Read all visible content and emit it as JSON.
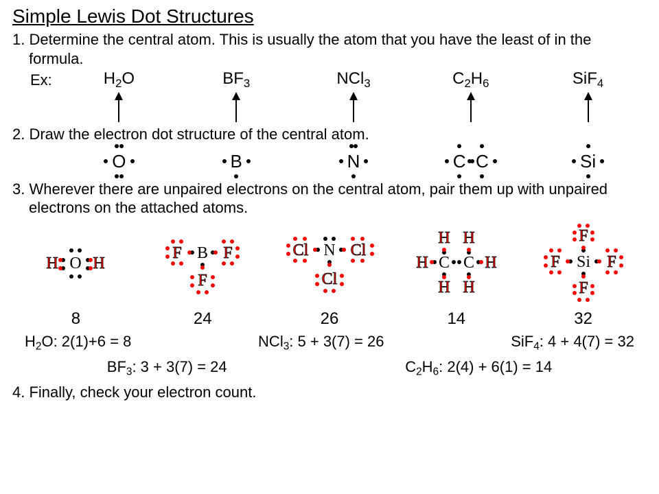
{
  "title": "Simple Lewis Dot Structures",
  "steps": {
    "s1": "1. Determine the central atom.  This is usually the atom that you have the least of in the formula.",
    "s2": "2. Draw the electron dot structure of the central atom.",
    "s3": "3. Wherever there are unpaired electrons on the central atom, pair them up with unpaired electrons on the attached atoms.",
    "s4": "4. Finally, check your electron count."
  },
  "ex_label": "Ex:",
  "formulas": {
    "f1_html": "H<sub>2</sub>O",
    "f2_html": "BF<sub>3</sub>",
    "f3_html": "NCl<sub>3</sub>",
    "f4_html": "C<sub>2</sub>H<sub>6</sub>",
    "f5_html": "SiF<sub>4</sub>"
  },
  "central_atoms": {
    "a1": "O",
    "a2": "B",
    "a3": "N",
    "a4": "C C",
    "a5": "Si"
  },
  "counts": {
    "c1": "8",
    "c2": "24",
    "c3": "26",
    "c4": "14",
    "c5": "32"
  },
  "checks": {
    "k1_html": "H<sub>2</sub>O: 2(1)+6 = 8",
    "k2_html": "NCl<sub>3</sub>: 5 + 3(7) = 26",
    "k3_html": "SiF<sub>4</sub>: 4 + 4(7) = 32",
    "k4_html": "BF<sub>3</sub>: 3 + 3(7) = 24",
    "k5_html": "C<sub>2</sub>H<sub>6</sub>: 2(4) + 6(1) = 14"
  },
  "colors": {
    "bg": "#ffffff",
    "text": "#000000",
    "attached_fill": "#ff0000",
    "attached_stroke": "#000000",
    "dot_red": "#ff0000",
    "dot_black": "#000000"
  },
  "diagrams": {
    "h2o": {
      "center": "O",
      "attached": [
        "H",
        "H"
      ],
      "total_electrons": 8
    },
    "bf3": {
      "center": "B",
      "attached": [
        "F",
        "F",
        "F"
      ],
      "total_electrons": 24
    },
    "ncl3": {
      "center": "N",
      "attached": [
        "Cl",
        "Cl",
        "Cl"
      ],
      "total_electrons": 26
    },
    "c2h6": {
      "centers": [
        "C",
        "C"
      ],
      "attached": [
        "H",
        "H",
        "H",
        "H",
        "H",
        "H"
      ],
      "total_electrons": 14
    },
    "sif4": {
      "center": "Si",
      "attached": [
        "F",
        "F",
        "F",
        "F"
      ],
      "total_electrons": 32
    }
  }
}
